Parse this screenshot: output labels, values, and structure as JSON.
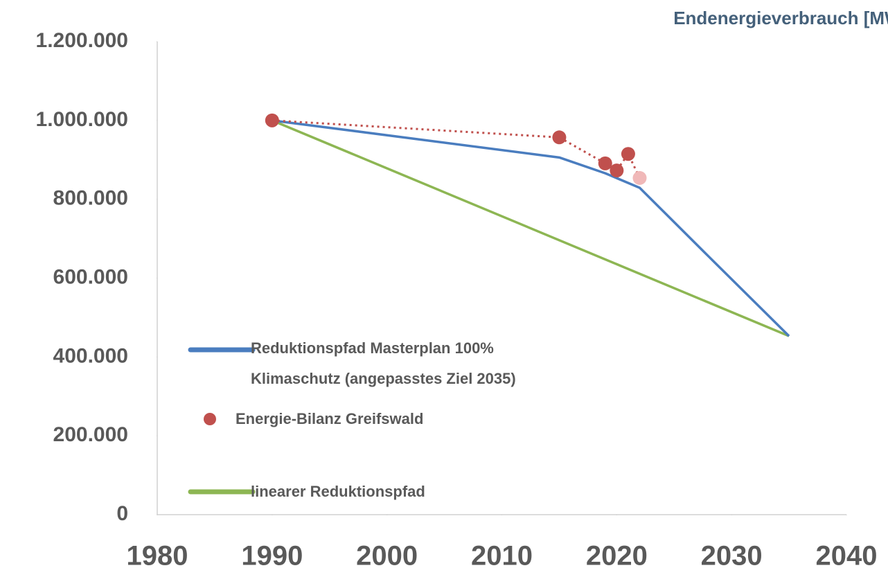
{
  "chart_data": {
    "type": "line",
    "title": "Endenergieverbrauch [MWh/a]",
    "xlim": [
      1980,
      2040
    ],
    "xticks": [
      1980,
      1990,
      2000,
      2010,
      2020,
      2030,
      2040
    ],
    "ylim": [
      0,
      1200000
    ],
    "yticks": [
      0,
      {
        "value": 200000,
        "label": "200.000"
      },
      {
        "value": 400000,
        "label": "400.000"
      },
      {
        "value": 600000,
        "label": "600.000"
      },
      {
        "value": 800000,
        "label": "800.000"
      },
      {
        "value": 1000000,
        "label": "1.000.000"
      },
      {
        "value": 1200000,
        "label": "1.200.000"
      }
    ],
    "grid": false,
    "series": [
      {
        "name": "Reduktionspfad Masterplan 100% Klimaschutz (angepasstes Ziel 2035)",
        "kind": "line",
        "color": "#4a7dbf",
        "x": [
          1990,
          2015,
          2019,
          2022,
          2028,
          2035
        ],
        "values": [
          1000000,
          906000,
          866000,
          829000,
          655000,
          453000
        ]
      },
      {
        "name": "Energie-Bilanz Greifswald",
        "kind": "scatter",
        "line_style": "dotted",
        "color": "#c0504d",
        "point_colors": [
          "#c0504d",
          "#c0504d",
          "#c0504d",
          "#c0504d",
          "#c0504d",
          "#f0b8b8"
        ],
        "x": [
          1990,
          2015,
          2019,
          2020,
          2021,
          2022
        ],
        "values": [
          1000000,
          957000,
          891000,
          873000,
          915000,
          854000
        ]
      },
      {
        "name": "linearer Reduktionspfad",
        "kind": "line",
        "color": "#8db653",
        "x": [
          1990,
          2035
        ],
        "values": [
          1000000,
          453000
        ]
      }
    ]
  }
}
